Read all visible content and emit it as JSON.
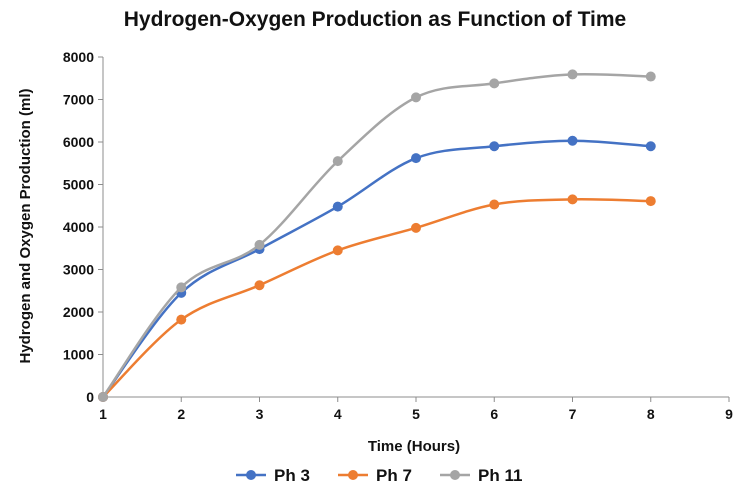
{
  "chart_data": {
    "type": "line",
    "title": "Hydrogen-Oxygen Production as Function of Time",
    "xlabel": "Time (Hours)",
    "ylabel": "Hydrogen and Oxygen Production (ml)",
    "xlim": [
      1,
      9
    ],
    "ylim": [
      0,
      8000
    ],
    "x_ticks": [
      1,
      2,
      3,
      4,
      5,
      6,
      7,
      8,
      9
    ],
    "y_ticks": [
      0,
      1000,
      2000,
      3000,
      4000,
      5000,
      6000,
      7000,
      8000
    ],
    "grid": false,
    "legend_position": "bottom",
    "smooth": true,
    "x": [
      1,
      2,
      3,
      4,
      5,
      6,
      7,
      8
    ],
    "series": [
      {
        "name": "Ph 3",
        "color": "#4472C4",
        "values": [
          0,
          2450,
          3480,
          4480,
          5620,
          5900,
          6030,
          5900
        ]
      },
      {
        "name": "Ph 7",
        "color": "#ED7D31",
        "values": [
          0,
          1820,
          2630,
          3450,
          3980,
          4530,
          4650,
          4610
        ]
      },
      {
        "name": "Ph 11",
        "color": "#A5A5A5",
        "values": [
          0,
          2580,
          3580,
          5550,
          7050,
          7380,
          7590,
          7540
        ]
      }
    ]
  }
}
